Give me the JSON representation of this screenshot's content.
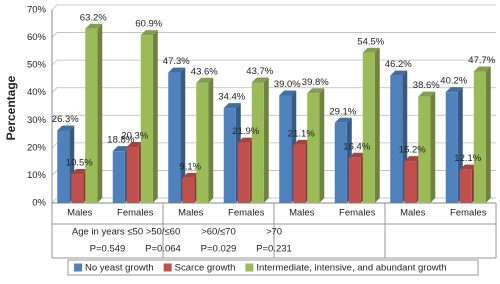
{
  "chart_data": {
    "type": "bar3d",
    "ylabel": "Percentage",
    "categories": [
      "Males",
      "Females",
      "Males",
      "Females",
      "Males",
      "Females",
      "Males",
      "Females"
    ],
    "groups": [
      {
        "label": "Age in years ≤50",
        "p": "P=0.549"
      },
      {
        "label": ">50/≤60",
        "p": "P=0.064"
      },
      {
        "label": ">60/≤70",
        "p": "P=0.029"
      },
      {
        "label": ">70",
        "p": "P=0.231"
      }
    ],
    "series": [
      {
        "name": "No yeast growth",
        "color": "#4f81bd",
        "values": [
          26.3,
          18.8,
          47.3,
          34.4,
          39.0,
          29.1,
          46.2,
          40.2
        ],
        "value_labels": [
          "26.3%",
          "18.8%",
          "47.3%",
          "34.4%",
          "39.0%",
          "29.1%",
          "46.2%",
          "40.2%"
        ]
      },
      {
        "name": "Scarce growth",
        "color": "#c0504d",
        "values": [
          10.5,
          20.3,
          9.1,
          21.9,
          21.1,
          16.4,
          15.2,
          12.1
        ],
        "value_labels": [
          "10.5%",
          "20.3%",
          "9.1%",
          "21.9%",
          "21.1%",
          "16.4%",
          "15.2%",
          "12.1%"
        ]
      },
      {
        "name": "Intermediate, intensive, and abundant growth",
        "color": "#9bbb59",
        "values": [
          63.2,
          60.9,
          43.6,
          43.7,
          39.8,
          54.5,
          38.6,
          47.7
        ],
        "value_labels": [
          "63.2%",
          "60.9%",
          "43.6%",
          "43.7%",
          "39.8%",
          "54.5%",
          "38.6%",
          "47.7%"
        ]
      }
    ],
    "ylim": [
      0,
      70
    ],
    "yticks": [
      {
        "value": 0,
        "label": "0%"
      },
      {
        "value": 10,
        "label": "10%"
      },
      {
        "value": 20,
        "label": "20%"
      },
      {
        "value": 30,
        "label": "30%"
      },
      {
        "value": 40,
        "label": "40%"
      },
      {
        "value": 50,
        "label": "50%"
      },
      {
        "value": 60,
        "label": "60%"
      },
      {
        "value": 70,
        "label": "70%"
      }
    ],
    "grid": true,
    "legend": "bottom"
  }
}
